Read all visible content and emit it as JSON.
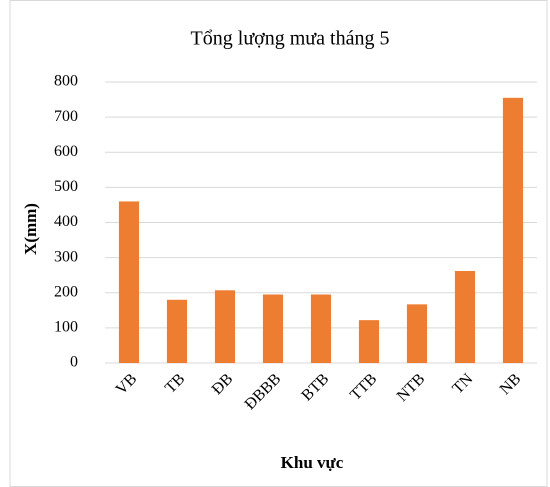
{
  "chart_data": {
    "type": "bar",
    "title": "Tổng lượng mưa tháng 5",
    "y_label": "X(mm)",
    "x_label": "Khu vực",
    "categories": [
      "VB",
      "TB",
      "ĐB",
      "ĐBBB",
      "BTB",
      "TTB",
      "NTB",
      "TN",
      "NB"
    ],
    "values": [
      460,
      180,
      207,
      195,
      195,
      122,
      167,
      262,
      755
    ],
    "color": "#ed7d31",
    "ylim": [
      0,
      800
    ],
    "yticks": [
      0,
      100,
      200,
      300,
      400,
      500,
      600,
      700,
      800
    ],
    "grid": true
  }
}
